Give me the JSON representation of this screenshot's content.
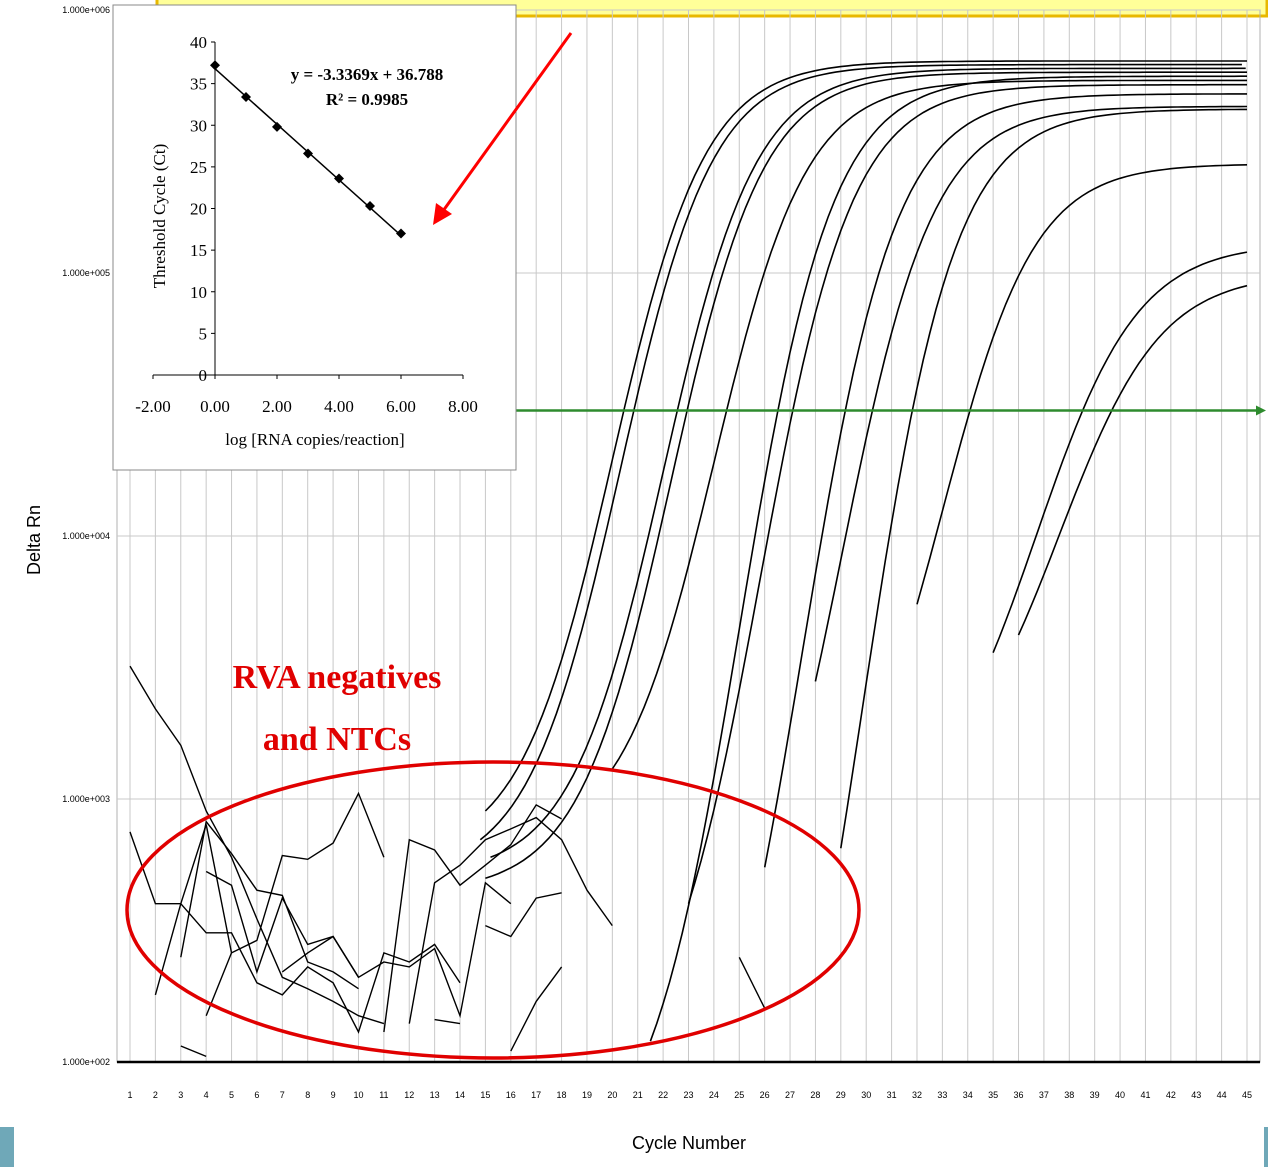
{
  "chart_data": [
    {
      "type": "line",
      "xlabel": "Cycle Number",
      "ylabel": "Delta Rn",
      "y_scale": "log",
      "ylim": [
        100,
        1000000
      ],
      "xlim": [
        1,
        45
      ],
      "x_ticks": [
        1,
        2,
        3,
        4,
        5,
        6,
        7,
        8,
        9,
        10,
        11,
        12,
        13,
        14,
        15,
        16,
        17,
        18,
        19,
        20,
        21,
        22,
        23,
        24,
        25,
        26,
        27,
        28,
        29,
        30,
        31,
        32,
        33,
        34,
        35,
        36,
        37,
        38,
        39,
        40,
        41,
        42,
        43,
        44,
        45
      ],
      "y_ticks": [
        {
          "value": 100,
          "label": "1.000e+002"
        },
        {
          "value": 1000,
          "label": "1.000e+003"
        },
        {
          "value": 10000,
          "label": "1.000e+004"
        },
        {
          "value": 100000,
          "label": "1.000e+005"
        },
        {
          "value": 1000000,
          "label": "1.000e+006"
        }
      ],
      "threshold": {
        "value": 30000,
        "color": "#2e8b2e"
      },
      "amplification_curves": [
        {
          "x0": 15.0,
          "midpoint": 20.0,
          "plateau": 640000,
          "base": 900,
          "k": 0.55
        },
        {
          "x0": 14.8,
          "midpoint": 20.3,
          "plateau": 620000,
          "base": 700,
          "k": 0.55
        },
        {
          "x0": 15.2,
          "midpoint": 22.0,
          "plateau": 600000,
          "base": 600,
          "k": 0.55
        },
        {
          "x0": 15.0,
          "midpoint": 22.3,
          "plateau": 580000,
          "base": 500,
          "k": 0.55
        },
        {
          "x0": 20.0,
          "midpoint": 24.0,
          "plateau": 540000,
          "base": 1300,
          "k": 0.55
        },
        {
          "x0": 23.0,
          "midpoint": 25.8,
          "plateau": 520000,
          "base": 400,
          "k": 0.55
        },
        {
          "x0": 26.0,
          "midpoint": 27.5,
          "plateau": 480000,
          "base": 550,
          "k": 0.55
        },
        {
          "x0": 29.0,
          "midpoint": 29.8,
          "plateau": 420000,
          "base": 650,
          "k": 0.55
        },
        {
          "x0": 28.0,
          "midpoint": 29.0,
          "plateau": 430000,
          "base": 2800,
          "k": 0.55
        },
        {
          "x0": 32.0,
          "midpoint": 33.0,
          "plateau": 260000,
          "base": 5500,
          "k": 0.55
        },
        {
          "x0": 35.0,
          "midpoint": 36.7,
          "plateau": 130000,
          "base": 3600,
          "k": 0.5
        },
        {
          "x0": 36.0,
          "midpoint": 37.6,
          "plateau": 100000,
          "base": 4200,
          "k": 0.5
        },
        {
          "x0": 21.5,
          "midpoint": 25.0,
          "plateau": 560000,
          "base": 120,
          "k": 0.55
        }
      ],
      "noise_series": [
        {
          "x": [
            1,
            2,
            3,
            4,
            5,
            6,
            7,
            8,
            9,
            10,
            11
          ],
          "y": [
            3200,
            2200,
            1600,
            900,
            600,
            350,
            210,
            190,
            170,
            150,
            140
          ]
        },
        {
          "x": [
            1,
            2,
            3,
            4,
            5,
            6,
            7,
            8,
            9,
            10,
            11,
            12,
            13,
            14
          ],
          "y": [
            750,
            400,
            400,
            310,
            310,
            200,
            180,
            230,
            200,
            130,
            260,
            240,
            280,
            200
          ]
        },
        {
          "x": [
            2,
            3,
            4,
            5,
            6,
            7,
            8,
            9,
            10,
            11
          ],
          "y": [
            180,
            400,
            800,
            260,
            290,
            610,
            590,
            680,
            1050,
            600
          ]
        },
        {
          "x": [
            3,
            4,
            5,
            6,
            7,
            8,
            9,
            10
          ],
          "y": [
            250,
            820,
            620,
            450,
            430,
            240,
            220,
            190
          ]
        },
        {
          "x": [
            3,
            4
          ],
          "y": [
            115,
            105
          ]
        },
        {
          "x": [
            4,
            5,
            6,
            7,
            8,
            9,
            10,
            11,
            12,
            13,
            14,
            15,
            16
          ],
          "y": [
            530,
            470,
            220,
            420,
            280,
            300,
            210,
            240,
            230,
            270,
            150,
            480,
            400
          ]
        },
        {
          "x": [
            4,
            5
          ],
          "y": [
            150,
            260
          ]
        },
        {
          "x": [
            7,
            8,
            9,
            10
          ],
          "y": [
            220,
            260,
            300,
            210
          ]
        },
        {
          "x": [
            11,
            12,
            13,
            14,
            15,
            16,
            17,
            18
          ],
          "y": [
            130,
            700,
            640,
            470,
            560,
            670,
            950,
            840
          ]
        },
        {
          "x": [
            12,
            13,
            14,
            15,
            16,
            17,
            18,
            19,
            20
          ],
          "y": [
            140,
            480,
            560,
            700,
            770,
            850,
            700,
            450,
            330
          ]
        },
        {
          "x": [
            13,
            14
          ],
          "y": [
            145,
            140
          ]
        },
        {
          "x": [
            15,
            16,
            17,
            18
          ],
          "y": [
            330,
            300,
            420,
            440
          ]
        },
        {
          "x": [
            16,
            17,
            18
          ],
          "y": [
            110,
            170,
            230
          ]
        },
        {
          "x": [
            25,
            26
          ],
          "y": [
            250,
            160
          ]
        }
      ],
      "annotations": [
        {
          "text": "RVA negatives"
        },
        {
          "text": "and NTCs"
        }
      ]
    },
    {
      "type": "scatter",
      "xlabel": "log [RNA copies/reaction]",
      "ylabel": "Threshold Cycle (Ct)",
      "xlim": [
        -2,
        8
      ],
      "ylim": [
        0,
        40
      ],
      "x_ticks": [
        "-2.00",
        "0.00",
        "2.00",
        "4.00",
        "6.00",
        "8.00"
      ],
      "y_ticks": [
        "0",
        "5",
        "10",
        "15",
        "20",
        "25",
        "30",
        "35",
        "40"
      ],
      "x": [
        0,
        1,
        2,
        3,
        4,
        5,
        6
      ],
      "y": [
        37.2,
        33.4,
        29.8,
        26.6,
        23.6,
        20.3,
        17.0
      ],
      "trendline": {
        "slope": -3.3369,
        "intercept": 36.788
      },
      "equation": "y = -3.3369x + 36.788",
      "r_squared": "R² = 0.9985"
    }
  ],
  "decorations": {
    "banner_fill": "#ffff99",
    "banner_border": "#e8b800",
    "arrow_color": "#ff0000",
    "ellipse_color": "#e00000",
    "side_bar_color": "#6fa8b8"
  }
}
